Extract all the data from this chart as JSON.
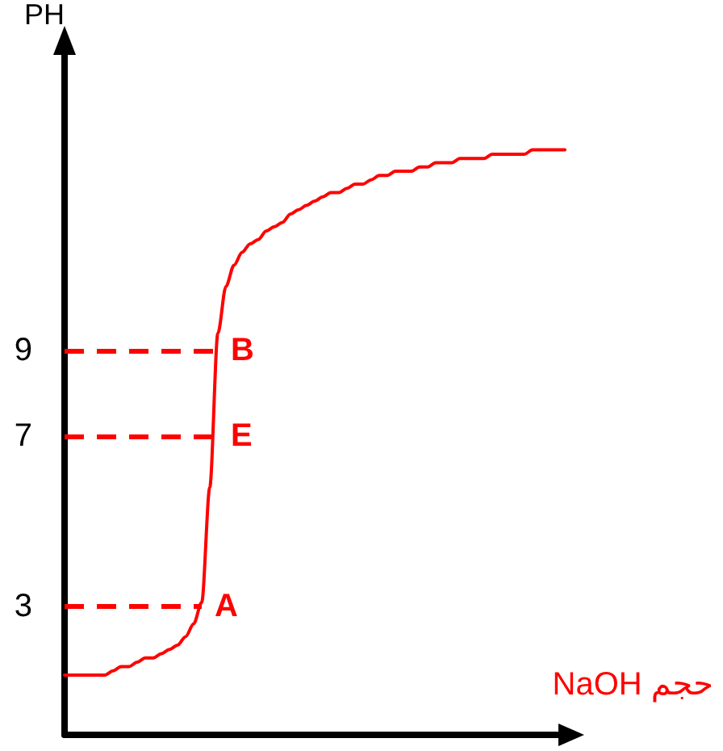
{
  "chart_data": {
    "type": "line",
    "xlabel": "حجم NaOH",
    "ylabel": "PH",
    "categories": [
      null,
      null,
      null,
      null,
      null,
      null,
      null,
      null,
      null,
      null,
      null,
      null,
      null,
      null,
      null,
      null,
      null,
      null,
      null,
      null,
      null,
      null,
      null,
      null,
      null,
      null,
      null,
      null,
      null,
      null,
      null,
      null,
      null,
      null,
      null,
      null,
      null,
      null,
      null,
      null,
      null,
      null,
      null,
      null,
      null,
      null,
      null,
      null,
      null,
      null,
      null,
      null,
      null,
      null,
      null,
      null,
      null,
      null,
      null,
      null,
      null,
      null,
      null
    ],
    "series": [
      {
        "color": "#ff0000",
        "values": [
          1.4,
          1.4,
          1.4,
          1.4,
          1.4,
          1.4,
          1.5,
          1.6,
          1.6,
          1.7,
          1.8,
          1.8,
          1.9,
          2.0,
          2.1,
          2.3,
          2.6,
          3.1,
          5.8,
          9.4,
          10.5,
          11.0,
          11.3,
          11.5,
          11.6,
          11.8,
          11.9,
          12.0,
          12.2,
          12.3,
          12.4,
          12.5,
          12.6,
          12.7,
          12.7,
          12.8,
          12.9,
          12.9,
          13.0,
          13.1,
          13.1,
          13.2,
          13.2,
          13.2,
          13.3,
          13.3,
          13.4,
          13.4,
          13.4,
          13.5,
          13.5,
          13.5,
          13.5,
          13.6,
          13.6,
          13.6,
          13.6,
          13.6,
          13.7,
          13.7,
          13.7,
          13.7,
          13.7
        ]
      }
    ],
    "ylim": [
      0,
      16
    ],
    "yticks": [
      3,
      7,
      9
    ],
    "tick_labels": "y",
    "ref_lines": [
      {
        "axis": "y",
        "value": 3,
        "label": "A",
        "color": "#ff0000",
        "line_style": "dashed"
      },
      {
        "axis": "y",
        "value": 7,
        "label": "E",
        "color": "#ff0000",
        "line_style": "dashed"
      },
      {
        "axis": "y",
        "value": 9,
        "label": "B",
        "color": "#ff0000",
        "line_style": "dashed"
      }
    ]
  }
}
